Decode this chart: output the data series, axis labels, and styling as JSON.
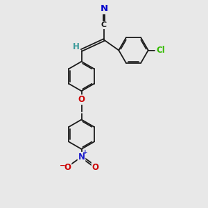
{
  "bg_color": "#e8e8e8",
  "bond_color": "#1a1a1a",
  "bond_lw": 1.3,
  "dbo": 0.06,
  "ring_r": 0.85,
  "atom_colors": {
    "N_nitrile": "#0000cc",
    "N_nitro": "#1a1acc",
    "O": "#cc0000",
    "Cl": "#33bb00",
    "C_vinyl": "#1a1a1a",
    "H": "#3a9a9a"
  },
  "fs": 8.5,
  "fs_small": 6.5,
  "xlim": [
    0,
    10
  ],
  "ylim": [
    0,
    12
  ]
}
